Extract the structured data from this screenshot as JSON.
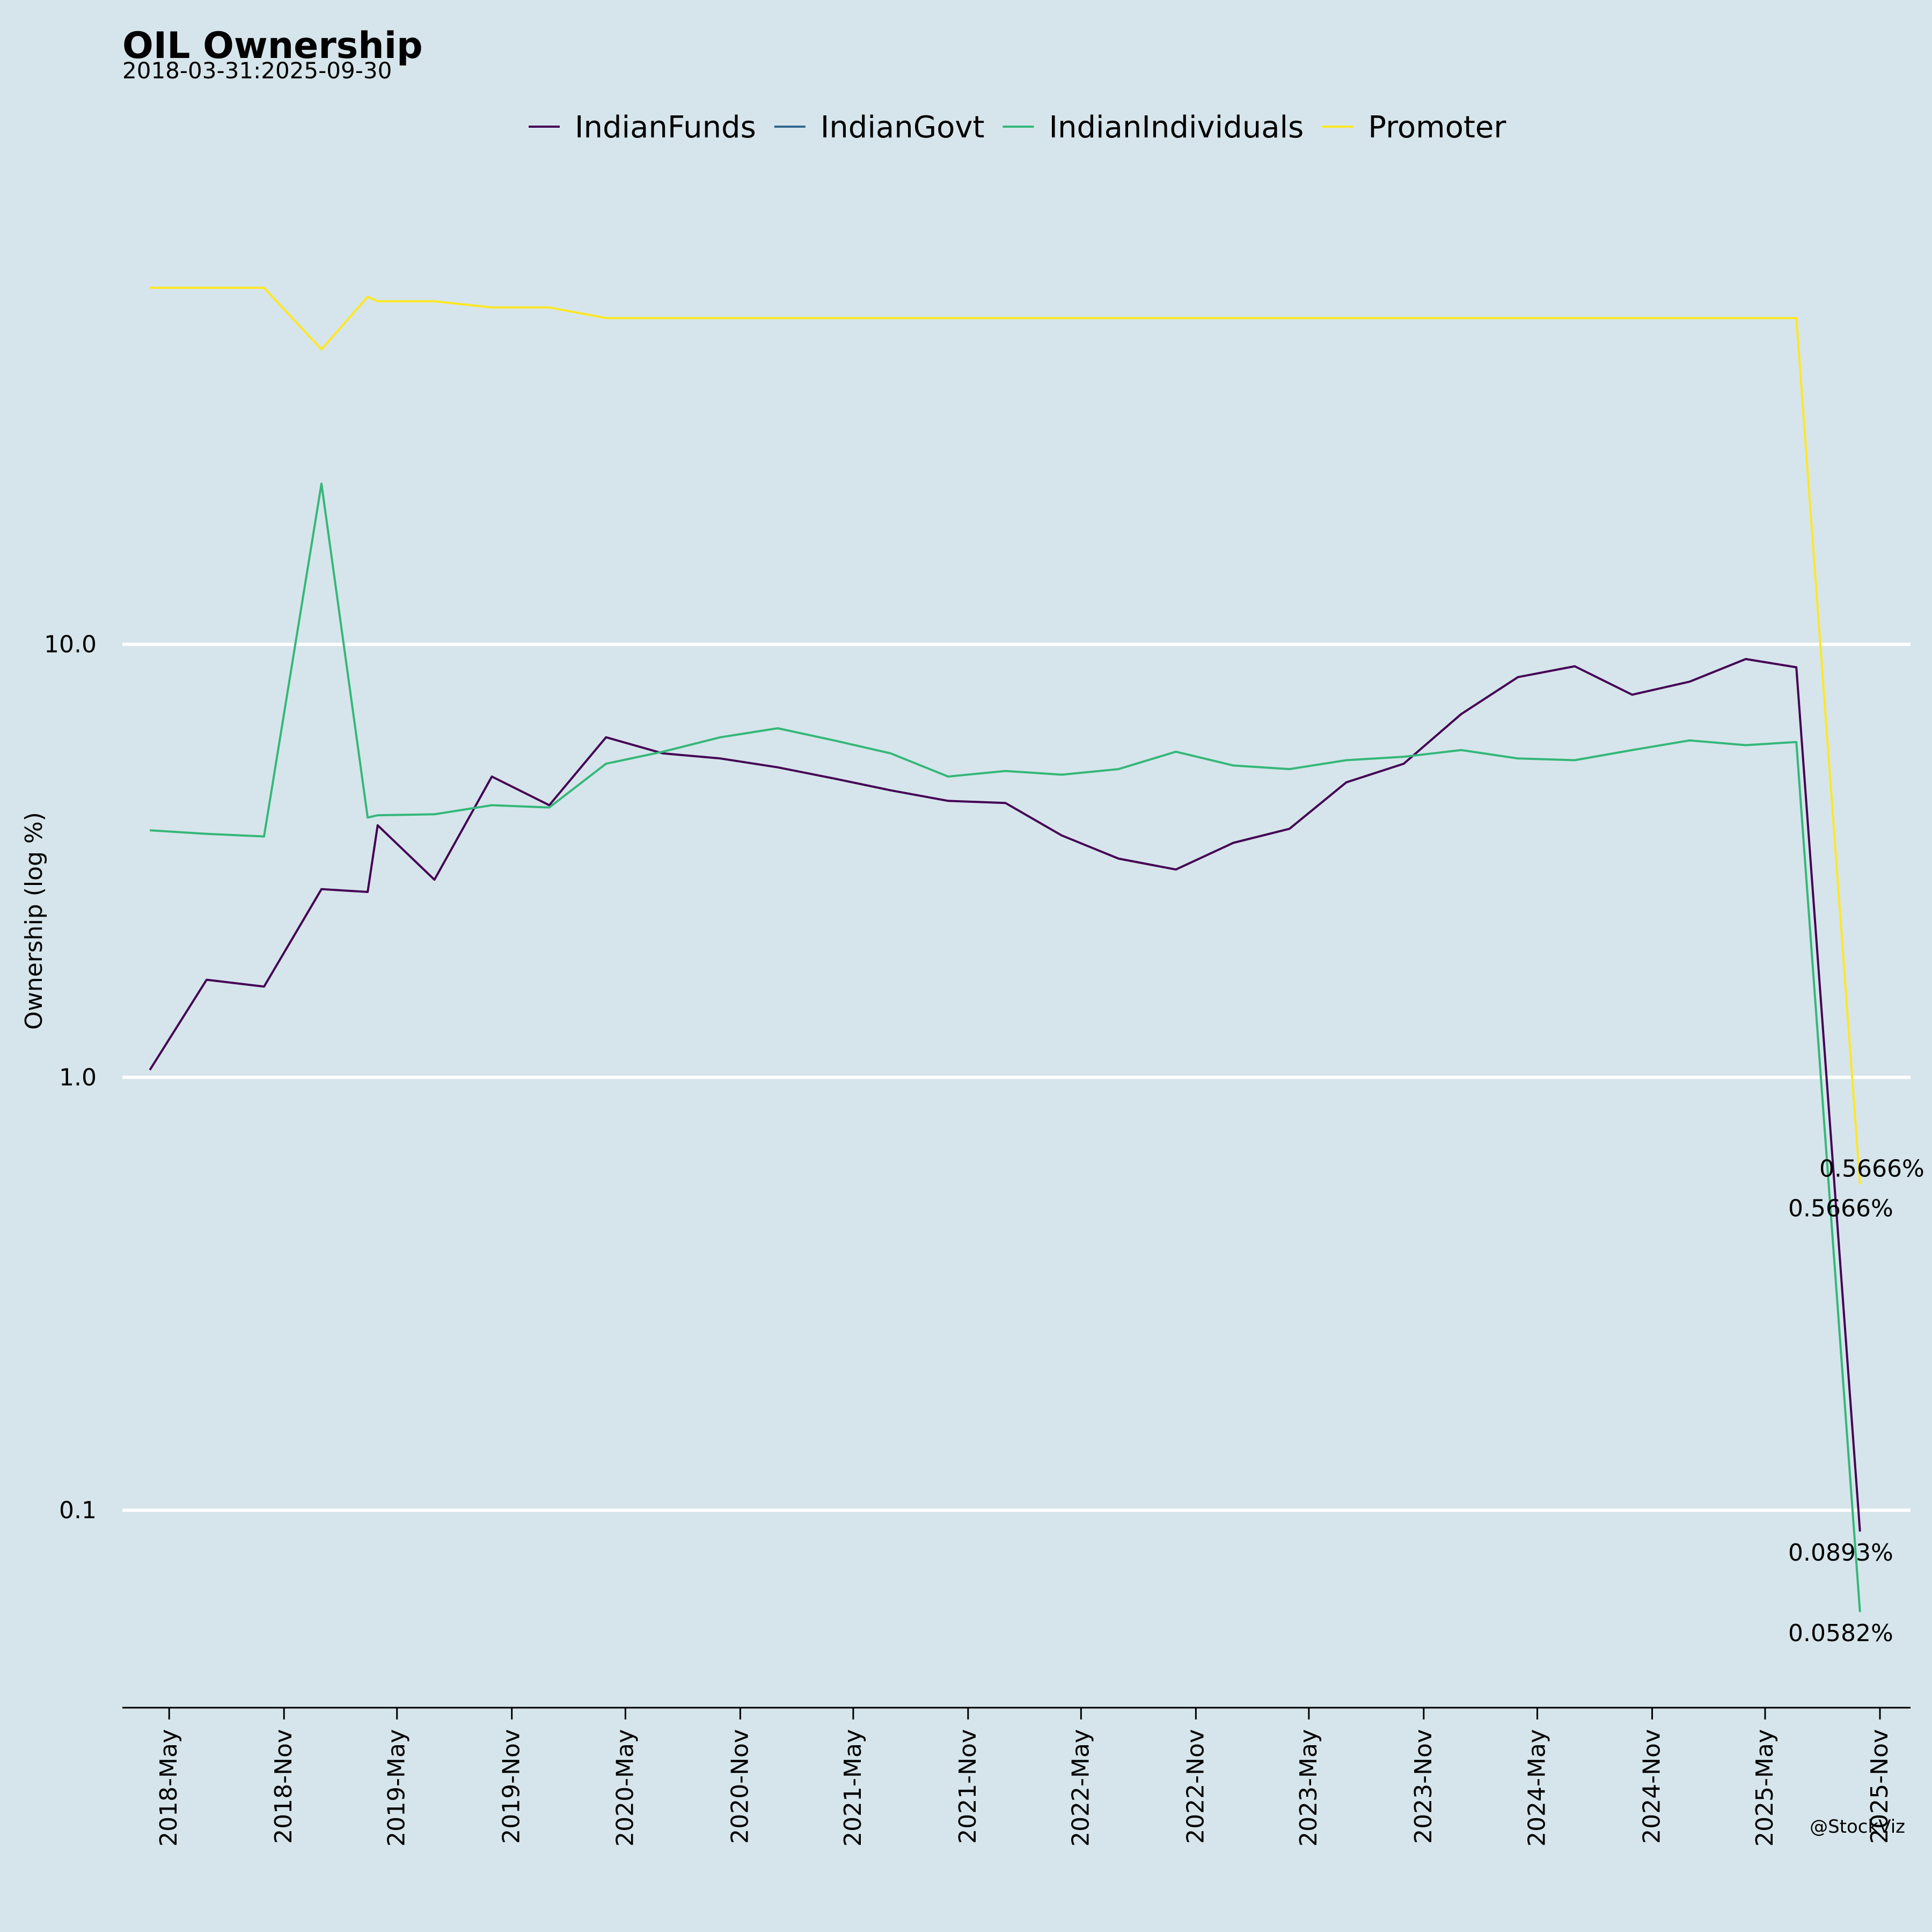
{
  "chart_data": {
    "type": "line",
    "title": "OIL Ownership",
    "subtitle": "2018-03-31:2025-09-30",
    "ylabel": "Ownership (log %)",
    "xlabel": "",
    "yscale": "log",
    "ylim": [
      0.035,
      120
    ],
    "yticks": [
      {
        "value": 0.1,
        "label": "0.1"
      },
      {
        "value": 1.0,
        "label": "1.0"
      },
      {
        "value": 10.0,
        "label": "10.0"
      }
    ],
    "xlim": [
      "2018-02-15",
      "2025-12-20"
    ],
    "xticks": [
      {
        "date": "2018-05-01",
        "label": "2018-May"
      },
      {
        "date": "2018-11-01",
        "label": "2018-Nov"
      },
      {
        "date": "2019-05-01",
        "label": "2019-May"
      },
      {
        "date": "2019-11-01",
        "label": "2019-Nov"
      },
      {
        "date": "2020-05-01",
        "label": "2020-May"
      },
      {
        "date": "2020-11-01",
        "label": "2020-Nov"
      },
      {
        "date": "2021-05-01",
        "label": "2021-May"
      },
      {
        "date": "2021-11-01",
        "label": "2021-Nov"
      },
      {
        "date": "2022-05-01",
        "label": "2022-May"
      },
      {
        "date": "2022-11-01",
        "label": "2022-Nov"
      },
      {
        "date": "2023-05-01",
        "label": "2023-May"
      },
      {
        "date": "2023-11-01",
        "label": "2023-Nov"
      },
      {
        "date": "2024-05-01",
        "label": "2024-May"
      },
      {
        "date": "2024-11-01",
        "label": "2024-Nov"
      },
      {
        "date": "2025-05-01",
        "label": "2025-May"
      },
      {
        "date": "2025-11-01",
        "label": "2025-Nov"
      }
    ],
    "legend_position": "top-center",
    "series": [
      {
        "name": "IndianFunds",
        "color": "#440154",
        "points": [
          [
            "2018-03-31",
            1.04
          ],
          [
            "2018-06-30",
            1.68
          ],
          [
            "2018-09-30",
            1.62
          ],
          [
            "2018-12-31",
            2.72
          ],
          [
            "2019-03-15",
            2.68
          ],
          [
            "2019-03-31",
            3.82
          ],
          [
            "2019-06-30",
            2.86
          ],
          [
            "2019-09-30",
            4.95
          ],
          [
            "2019-12-31",
            4.25
          ],
          [
            "2020-03-31",
            6.1
          ],
          [
            "2020-06-30",
            5.6
          ],
          [
            "2020-09-30",
            5.45
          ],
          [
            "2020-12-31",
            5.2
          ],
          [
            "2021-03-31",
            4.9
          ],
          [
            "2021-06-30",
            4.6
          ],
          [
            "2021-09-30",
            4.35
          ],
          [
            "2021-12-31",
            4.3
          ],
          [
            "2022-03-31",
            3.62
          ],
          [
            "2022-06-30",
            3.2
          ],
          [
            "2022-09-30",
            3.02
          ],
          [
            "2022-12-31",
            3.48
          ],
          [
            "2023-03-31",
            3.75
          ],
          [
            "2023-06-30",
            4.8
          ],
          [
            "2023-09-30",
            5.3
          ],
          [
            "2023-12-31",
            6.9
          ],
          [
            "2024-03-31",
            8.4
          ],
          [
            "2024-06-30",
            8.9
          ],
          [
            "2024-09-30",
            7.65
          ],
          [
            "2024-12-31",
            8.2
          ],
          [
            "2025-03-31",
            9.25
          ],
          [
            "2025-06-20",
            8.85
          ],
          [
            "2025-09-30",
            0.0893
          ]
        ],
        "end_label": "0.0893%"
      },
      {
        "name": "IndianGovt",
        "color": "#31688e",
        "points": [],
        "end_label": "0.5666%"
      },
      {
        "name": "IndianIndividuals",
        "color": "#35b779",
        "points": [
          [
            "2018-03-31",
            3.72
          ],
          [
            "2018-06-30",
            3.65
          ],
          [
            "2018-09-30",
            3.6
          ],
          [
            "2018-12-31",
            23.5
          ],
          [
            "2019-03-15",
            3.98
          ],
          [
            "2019-03-31",
            4.03
          ],
          [
            "2019-06-30",
            4.05
          ],
          [
            "2019-09-30",
            4.25
          ],
          [
            "2019-12-31",
            4.2
          ],
          [
            "2020-03-31",
            5.3
          ],
          [
            "2020-06-30",
            5.65
          ],
          [
            "2020-09-30",
            6.1
          ],
          [
            "2020-12-31",
            6.4
          ],
          [
            "2021-03-31",
            6.0
          ],
          [
            "2021-06-30",
            5.6
          ],
          [
            "2021-09-30",
            4.95
          ],
          [
            "2021-12-31",
            5.1
          ],
          [
            "2022-03-31",
            5.0
          ],
          [
            "2022-06-30",
            5.15
          ],
          [
            "2022-09-30",
            5.65
          ],
          [
            "2022-12-31",
            5.25
          ],
          [
            "2023-03-31",
            5.15
          ],
          [
            "2023-06-30",
            5.4
          ],
          [
            "2023-09-30",
            5.5
          ],
          [
            "2023-12-31",
            5.7
          ],
          [
            "2024-03-31",
            5.45
          ],
          [
            "2024-06-30",
            5.4
          ],
          [
            "2024-09-30",
            5.7
          ],
          [
            "2024-12-31",
            6.0
          ],
          [
            "2025-03-31",
            5.85
          ],
          [
            "2025-06-20",
            5.95
          ],
          [
            "2025-09-30",
            0.0582
          ]
        ],
        "end_label": "0.0582%"
      },
      {
        "name": "Promoter",
        "color": "#fde725",
        "points": [
          [
            "2018-03-31",
            66.6
          ],
          [
            "2018-06-30",
            66.6
          ],
          [
            "2018-09-30",
            66.6
          ],
          [
            "2018-12-31",
            48.0
          ],
          [
            "2019-03-15",
            63.5
          ],
          [
            "2019-03-31",
            62.0
          ],
          [
            "2019-06-30",
            62.0
          ],
          [
            "2019-09-30",
            60.0
          ],
          [
            "2019-12-31",
            60.0
          ],
          [
            "2020-03-31",
            56.7
          ],
          [
            "2020-06-30",
            56.7
          ],
          [
            "2020-09-30",
            56.7
          ],
          [
            "2020-12-31",
            56.7
          ],
          [
            "2021-03-31",
            56.7
          ],
          [
            "2021-06-30",
            56.7
          ],
          [
            "2021-09-30",
            56.7
          ],
          [
            "2021-12-31",
            56.7
          ],
          [
            "2022-03-31",
            56.7
          ],
          [
            "2022-06-30",
            56.7
          ],
          [
            "2022-09-30",
            56.7
          ],
          [
            "2022-12-31",
            56.7
          ],
          [
            "2023-03-31",
            56.7
          ],
          [
            "2023-06-30",
            56.7
          ],
          [
            "2023-09-30",
            56.7
          ],
          [
            "2023-12-31",
            56.7
          ],
          [
            "2024-03-31",
            56.7
          ],
          [
            "2024-06-30",
            56.7
          ],
          [
            "2024-09-30",
            56.7
          ],
          [
            "2024-12-31",
            56.7
          ],
          [
            "2025-03-31",
            56.7
          ],
          [
            "2025-06-20",
            56.7
          ],
          [
            "2025-09-30",
            0.5666
          ]
        ],
        "end_label": "0.5666%"
      }
    ]
  },
  "credit": "@StockViz"
}
